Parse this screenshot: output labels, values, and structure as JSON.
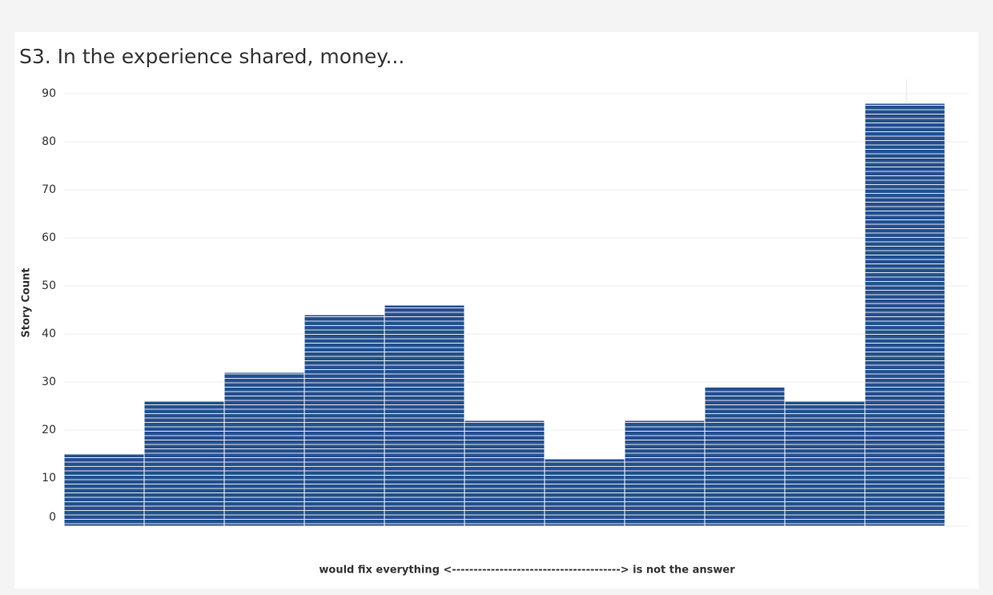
{
  "chart_data": {
    "type": "bar",
    "title": "S3. In the experience shared, money...",
    "x_label": "would fix everything <---------------------------------------> is not the answer",
    "y_label": "Story Count",
    "categories": [
      null,
      null,
      null,
      null,
      null,
      null,
      null,
      null,
      null,
      null,
      null
    ],
    "values": [
      15,
      26,
      32,
      44,
      46,
      22,
      14,
      22,
      29,
      26,
      88
    ],
    "color": "#24508e",
    "ylim": [
      0,
      93
    ],
    "yticks": [
      0,
      10,
      20,
      30,
      40,
      50,
      60,
      70,
      80,
      90
    ],
    "grid": true
  }
}
